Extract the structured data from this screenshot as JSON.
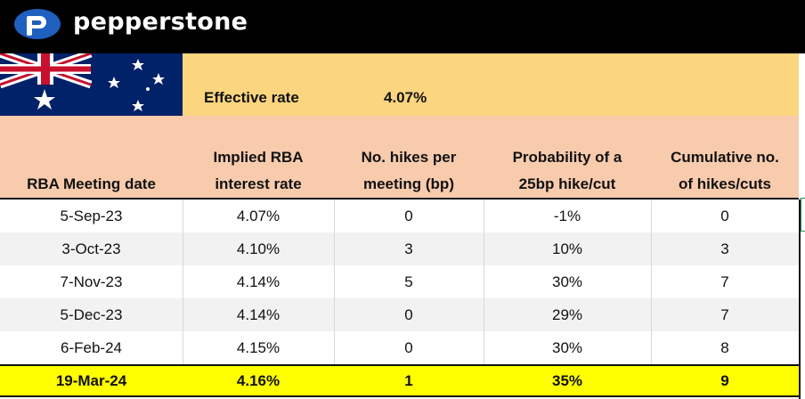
{
  "brand": {
    "name": "pepperstone"
  },
  "effective": {
    "label": "Effective rate",
    "value": "4.07%"
  },
  "columns": [
    "RBA Meeting date",
    "Implied RBA\ninterest rate",
    "No. hikes per\nmeeting (bp)",
    "Probability of a\n25bp hike/cut",
    "Cumulative no.\nof hikes/cuts"
  ],
  "rows": [
    [
      "5-Sep-23",
      "4.07%",
      "0",
      "-1%",
      "0"
    ],
    [
      "3-Oct-23",
      "4.10%",
      "3",
      "10%",
      "3"
    ],
    [
      "7-Nov-23",
      "4.14%",
      "5",
      "30%",
      "7"
    ],
    [
      "5-Dec-23",
      "4.14%",
      "0",
      "29%",
      "7"
    ],
    [
      "6-Feb-24",
      "4.15%",
      "0",
      "30%",
      "8"
    ],
    [
      "19-Mar-24",
      "4.16%",
      "1",
      "35%",
      "9"
    ]
  ],
  "colors": {
    "header": "#f8cbad",
    "rate_band": "#fcd57f",
    "highlight": "#ffff00",
    "stripe": "#f2f2f2",
    "brand_blue": "#1f5fbf"
  }
}
